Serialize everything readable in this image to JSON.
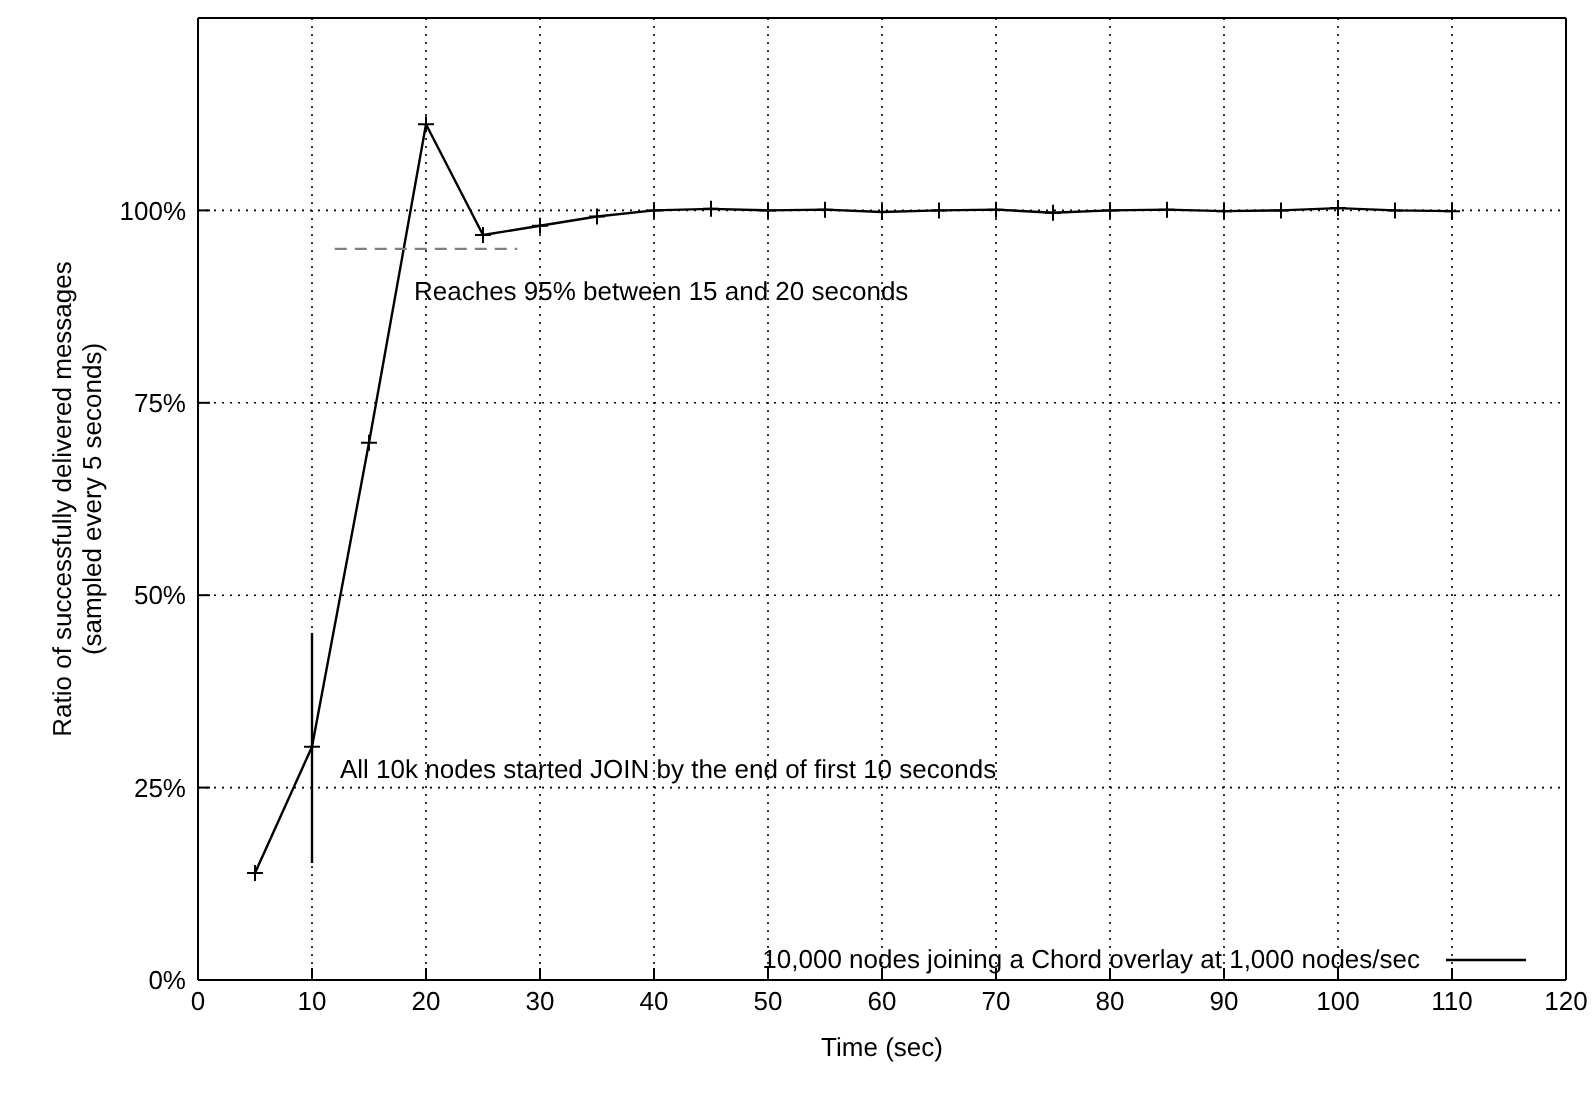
{
  "chart_data": {
    "type": "line",
    "xlabel": "Time (sec)",
    "ylabel": "Ratio of successfully delivered messages\n(sampled every 5 seconds)",
    "series": [
      {
        "name": "10,000 nodes joining a Chord overlay at 1,000 nodes/sec",
        "color": "#000000",
        "x": [
          5,
          10,
          15,
          20,
          25,
          30,
          35,
          40,
          45,
          50,
          55,
          60,
          65,
          70,
          75,
          80,
          85,
          90,
          95,
          100,
          105,
          110
        ],
        "values": [
          13.9,
          30.3,
          69.8,
          111.2,
          96.8,
          98,
          99.2,
          100,
          100.2,
          100,
          100.1,
          99.8,
          100,
          100.1,
          99.7,
          100,
          100.1,
          99.9,
          100,
          100.3,
          100,
          99.9
        ],
        "errors": [
          null,
          [
            15.2,
            45.1
          ],
          null,
          null,
          null,
          null,
          null,
          null,
          null,
          null,
          null,
          null,
          null,
          null,
          null,
          null,
          null,
          null,
          null,
          null,
          null,
          null
        ],
        "marker": "cross",
        "line_style": "solid"
      },
      {
        "type": "line",
        "color": "#808080",
        "x": [
          12,
          28
        ],
        "values": [
          95,
          95
        ],
        "marker": "none",
        "line_style": "dashed"
      }
    ],
    "xlim": [
      0,
      120
    ],
    "xticks": [
      0,
      10,
      20,
      30,
      40,
      50,
      60,
      70,
      80,
      90,
      100,
      110,
      120
    ],
    "ylim": [
      0,
      125
    ],
    "yticks": [
      {
        "value": 0,
        "label": "0%"
      },
      {
        "value": 25,
        "label": "25%"
      },
      {
        "value": 50,
        "label": "50%"
      },
      {
        "value": 75,
        "label": "75%"
      },
      {
        "value": 100,
        "label": "100%"
      }
    ],
    "grid": true,
    "legend": "bottom right",
    "annotations": [
      "Reaches 95% between 15 and 20 seconds",
      "All 10k nodes started JOIN by the end of first 10 seconds"
    ]
  }
}
